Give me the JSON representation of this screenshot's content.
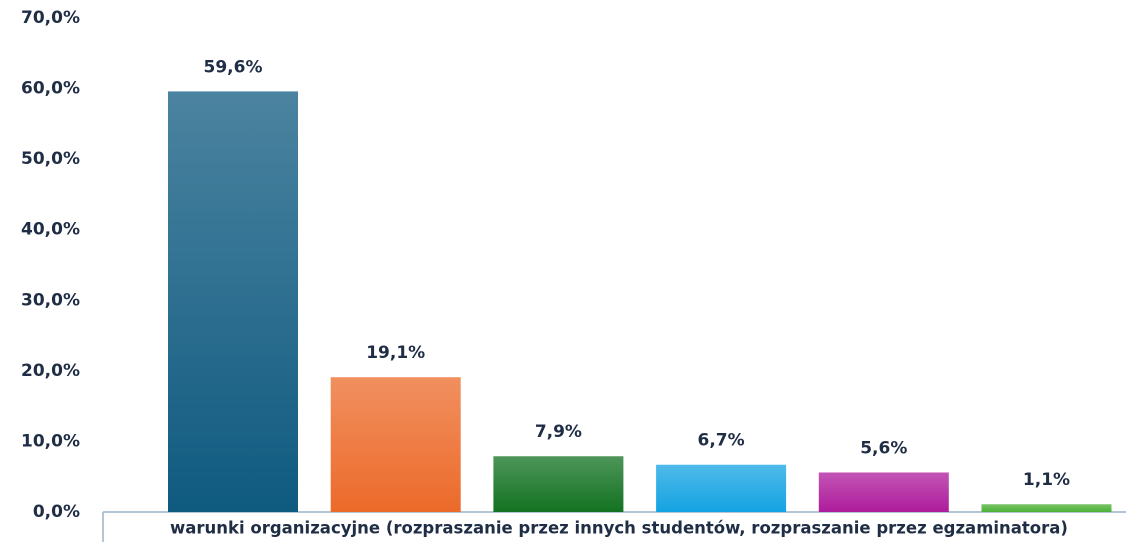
{
  "chart_data": {
    "type": "bar",
    "categories": [
      "warunki organizacyjne (rozpraszanie przez innych studentów, rozpraszanie przez egzaminatora)",
      null,
      null,
      null,
      null,
      null
    ],
    "values": [
      59.6,
      19.1,
      7.9,
      6.7,
      5.6,
      1.1
    ],
    "value_labels": [
      "59,6%",
      "19,1%",
      "7,9%",
      "6,7%",
      "5,6%",
      "1,1%"
    ],
    "colors": [
      "#0f5a80",
      "#ec6a2a",
      "#137222",
      "#14a3e2",
      "#ae1c9c",
      "#4cb136"
    ],
    "ylim": [
      0,
      70
    ],
    "yticks": [
      {
        "value": 0,
        "label": "0,0%"
      },
      {
        "value": 10,
        "label": "10,0%"
      },
      {
        "value": 20,
        "label": "20,0%"
      },
      {
        "value": 30,
        "label": "30,0%"
      },
      {
        "value": 40,
        "label": "40,0%"
      },
      {
        "value": 50,
        "label": "50,0%"
      },
      {
        "value": 60,
        "label": "60,0%"
      },
      {
        "value": 70,
        "label": "70,0%"
      }
    ],
    "grid": false
  }
}
